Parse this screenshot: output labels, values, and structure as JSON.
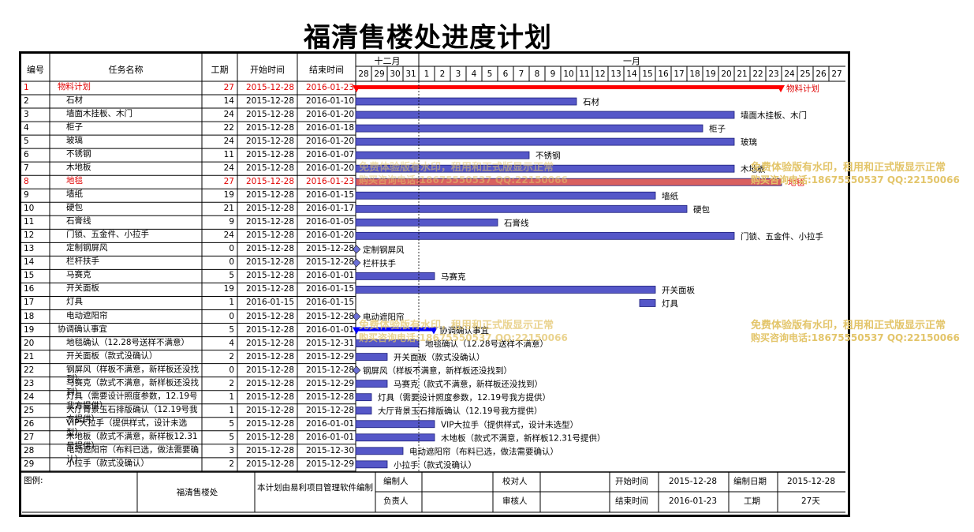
{
  "title": "福清售楼处进度计划",
  "columns": {
    "id": "编号",
    "name": "任务名称",
    "duration": "工期",
    "start": "开始时间",
    "end": "结束时间"
  },
  "timeline": {
    "months": [
      {
        "label": "十二月",
        "from": 0,
        "to": 4
      },
      {
        "label": "一月",
        "from": 4,
        "to": 31
      }
    ],
    "days": [
      "28",
      "29",
      "30",
      "31",
      "1",
      "2",
      "3",
      "4",
      "5",
      "6",
      "7",
      "8",
      "9",
      "10",
      "11",
      "12",
      "13",
      "14",
      "15",
      "16",
      "17",
      "18",
      "19",
      "20",
      "21",
      "22",
      "23",
      "24",
      "25",
      "26",
      "27"
    ],
    "first_day": "2015-12-28",
    "today_marker": "2016-01-01"
  },
  "chart_data": {
    "type": "gantt",
    "title": "福清售楼处进度计划",
    "colors": {
      "summary": "#ff0000",
      "summary_blue": "#0000ff",
      "task": "#5557c8",
      "critical": "#d96060",
      "milestone": "#6b6fd6"
    },
    "tasks": [
      {
        "id": "1",
        "name": "物料计划",
        "duration": "27",
        "start": "2015-12-28",
        "end": "2016-01-23",
        "level": 0,
        "kind": "summary",
        "red": true,
        "label": "物料计划"
      },
      {
        "id": "2",
        "name": "石材",
        "duration": "14",
        "start": "2015-12-28",
        "end": "2016-01-10",
        "level": 1,
        "kind": "task",
        "label": "石材"
      },
      {
        "id": "3",
        "name": "墙面木挂板、木门",
        "duration": "24",
        "start": "2015-12-28",
        "end": "2016-01-20",
        "level": 1,
        "kind": "task",
        "label": "墙面木挂板、木门"
      },
      {
        "id": "4",
        "name": "柜子",
        "duration": "22",
        "start": "2015-12-28",
        "end": "2016-01-18",
        "level": 1,
        "kind": "task",
        "label": "柜子"
      },
      {
        "id": "5",
        "name": "玻璃",
        "duration": "24",
        "start": "2015-12-28",
        "end": "2016-01-20",
        "level": 1,
        "kind": "task",
        "label": "玻璃"
      },
      {
        "id": "6",
        "name": "不锈钢",
        "duration": "11",
        "start": "2015-12-28",
        "end": "2016-01-07",
        "level": 1,
        "kind": "task",
        "label": "不锈钢"
      },
      {
        "id": "7",
        "name": "木地板",
        "duration": "24",
        "start": "2015-12-28",
        "end": "2016-01-20",
        "level": 1,
        "kind": "task",
        "label": "木地板"
      },
      {
        "id": "8",
        "name": "地毯",
        "duration": "27",
        "start": "2015-12-28",
        "end": "2016-01-23",
        "level": 1,
        "kind": "critical",
        "red": true,
        "label": "地毯"
      },
      {
        "id": "9",
        "name": "墙纸",
        "duration": "19",
        "start": "2015-12-28",
        "end": "2016-01-15",
        "level": 1,
        "kind": "task",
        "label": "墙纸"
      },
      {
        "id": "10",
        "name": "硬包",
        "duration": "21",
        "start": "2015-12-28",
        "end": "2016-01-17",
        "level": 1,
        "kind": "task",
        "label": "硬包"
      },
      {
        "id": "11",
        "name": "石膏线",
        "duration": "9",
        "start": "2015-12-28",
        "end": "2016-01-05",
        "level": 1,
        "kind": "task",
        "label": "石膏线"
      },
      {
        "id": "12",
        "name": "门锁、五金件、小拉手",
        "duration": "24",
        "start": "2015-12-28",
        "end": "2016-01-20",
        "level": 1,
        "kind": "task",
        "label": "门锁、五金件、小拉手"
      },
      {
        "id": "13",
        "name": "定制钢屏风",
        "duration": "0",
        "start": "2015-12-28",
        "end": "2015-12-28",
        "level": 1,
        "kind": "milestone",
        "label": "定制钢屏风"
      },
      {
        "id": "14",
        "name": "栏杆扶手",
        "duration": "0",
        "start": "2015-12-28",
        "end": "2015-12-28",
        "level": 1,
        "kind": "milestone",
        "label": "栏杆扶手"
      },
      {
        "id": "15",
        "name": "马赛克",
        "duration": "5",
        "start": "2015-12-28",
        "end": "2016-01-01",
        "level": 1,
        "kind": "task",
        "label": "马赛克"
      },
      {
        "id": "16",
        "name": "开关面板",
        "duration": "19",
        "start": "2015-12-28",
        "end": "2016-01-15",
        "level": 1,
        "kind": "task",
        "label": "开关面板"
      },
      {
        "id": "17",
        "name": "灯具",
        "duration": "1",
        "start": "2016-01-15",
        "end": "2016-01-15",
        "level": 1,
        "kind": "task",
        "label": "灯具"
      },
      {
        "id": "18",
        "name": "电动遮阳帘",
        "duration": "0",
        "start": "2015-12-28",
        "end": "2015-12-28",
        "level": 1,
        "kind": "milestone",
        "label": "电动遮阳帘"
      },
      {
        "id": "19",
        "name": "协调确认事宜",
        "duration": "5",
        "start": "2015-12-28",
        "end": "2016-01-01",
        "level": 0,
        "kind": "summary_blue",
        "label": "协调确认事宜"
      },
      {
        "id": "20",
        "name": "地毯确认（12.28号送样不满意）",
        "duration": "4",
        "start": "2015-12-28",
        "end": "2015-12-31",
        "level": 1,
        "kind": "task",
        "label": "地毯确认（12.28号送样不满意）"
      },
      {
        "id": "21",
        "name": "开关面板（款式没确认）",
        "duration": "2",
        "start": "2015-12-28",
        "end": "2015-12-29",
        "level": 1,
        "kind": "task",
        "label": "开关面板（款式没确认）"
      },
      {
        "id": "22",
        "name": "钢屏风（样板不满意，新样板还没找到）",
        "duration": "0",
        "start": "2015-12-28",
        "end": "2015-12-28",
        "level": 1,
        "kind": "milestone",
        "label": "钢屏风（样板不满意，新样板还没找到）"
      },
      {
        "id": "23",
        "name": "马赛克（款式不满意，新样板还没找到）",
        "duration": "2",
        "start": "2015-12-28",
        "end": "2015-12-29",
        "level": 1,
        "kind": "task",
        "label": "马赛克（款式不满意，新样板还没找到）"
      },
      {
        "id": "24",
        "name": "灯具（需要设计照度参数，12.19号我方提供）",
        "duration": "1",
        "start": "2015-12-28",
        "end": "2015-12-28",
        "level": 1,
        "kind": "task",
        "label": "灯具（需要设计照度参数，12.19号我方提供）"
      },
      {
        "id": "25",
        "name": "大厅背景玉石排版确认（12.19号我方提供）",
        "duration": "1",
        "start": "2015-12-28",
        "end": "2015-12-28",
        "level": 1,
        "kind": "task",
        "label": "大厅背景玉石排版确认（12.19号我方提供）"
      },
      {
        "id": "26",
        "name": "VIP大拉手（提供样式，设计未选型）",
        "duration": "5",
        "start": "2015-12-28",
        "end": "2016-01-01",
        "level": 1,
        "kind": "task",
        "label": "VIP大拉手（提供样式，设计未选型）"
      },
      {
        "id": "27",
        "name": "木地板（款式不满意，新样板12.31号提供）",
        "duration": "5",
        "start": "2015-12-28",
        "end": "2016-01-01",
        "level": 1,
        "kind": "task",
        "label": "木地板（款式不满意，新样板12.31号提供）"
      },
      {
        "id": "28",
        "name": "电动遮阳帘（布料已选，做法需要确认）",
        "duration": "3",
        "start": "2015-12-28",
        "end": "2015-12-30",
        "level": 1,
        "kind": "task",
        "label": "电动遮阳帘（布料已选，做法需要确认）"
      },
      {
        "id": "29",
        "name": "小拉手（款式没确认）",
        "duration": "2",
        "start": "2015-12-28",
        "end": "2015-12-29",
        "level": 1,
        "kind": "task",
        "label": "小拉手（款式没确认）"
      }
    ]
  },
  "footer": {
    "legend_label": "图例:",
    "project": "福清售楼处",
    "note": "本计划由易利项目管理软件编制",
    "preparer": "编制人",
    "checker": "校对人",
    "owner": "负责人",
    "reviewer": "审核人",
    "start_label": "开始时间",
    "start_value": "2015-12-28",
    "made_label": "编制日期",
    "made_value": "2015-12-28",
    "end_label": "结束时间",
    "end_value": "2016-01-23",
    "duration_label": "工期",
    "duration_value": "27天"
  },
  "watermarks": {
    "line1": "免费体验版有水印，租用和正式版显示正常",
    "line2": "购买咨询电话:18675550537 QQ:22150066"
  }
}
